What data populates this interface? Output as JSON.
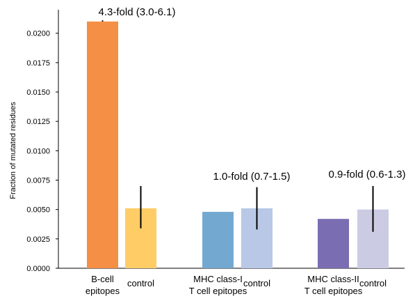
{
  "chart_data": {
    "type": "bar",
    "ylabel": "Fraction of mutated residues",
    "ylim": [
      0,
      0.022
    ],
    "yticks": [
      "0.0000",
      "0.0025",
      "0.0050",
      "0.0075",
      "0.0100",
      "0.0125",
      "0.0150",
      "0.0175",
      "0.0200"
    ],
    "grid": false,
    "groups": [
      {
        "fold_label": "4.3-fold (3.0-6.1)",
        "bars": [
          {
            "label": [
              "B-cell",
              "epitopes"
            ],
            "value": 0.021,
            "err_low": 0.021,
            "err_high": 0.0211,
            "color": "#f58f45"
          },
          {
            "label": [
              "control"
            ],
            "value": 0.0051,
            "err_low": 0.0034,
            "err_high": 0.007,
            "color": "#ffcc66"
          }
        ]
      },
      {
        "fold_label": "1.0-fold (0.7-1.5)",
        "bars": [
          {
            "label": [
              "MHC class-I",
              "T cell epitopes"
            ],
            "value": 0.0048,
            "err_low": 0.0048,
            "err_high": 0.0048,
            "color": "#73a9d1"
          },
          {
            "label": [
              "control"
            ],
            "value": 0.0051,
            "err_low": 0.0033,
            "err_high": 0.0069,
            "color": "#b8c8e6"
          }
        ]
      },
      {
        "fold_label": "0.9-fold (0.6-1.3)",
        "bars": [
          {
            "label": [
              "MHC class-II",
              "T cell epitopes"
            ],
            "value": 0.0042,
            "err_low": 0.0042,
            "err_high": 0.0042,
            "color": "#7a6db2"
          },
          {
            "label": [
              "control"
            ],
            "value": 0.005,
            "err_low": 0.0031,
            "err_high": 0.007,
            "color": "#cccbe4"
          }
        ]
      }
    ]
  }
}
